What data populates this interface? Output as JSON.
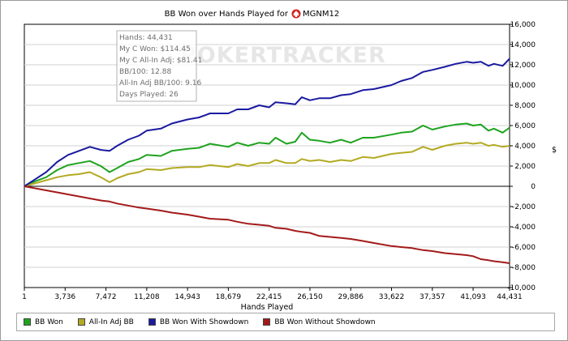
{
  "chart_data": {
    "type": "line",
    "title": "BB Won over Hands Played for",
    "player": "MGNM12",
    "xlabel": "Hands Played",
    "ylabel": "$",
    "xlim": [
      1,
      44431
    ],
    "ylim": [
      -10000,
      16000
    ],
    "x_ticks": [
      "1",
      "3,736",
      "7,472",
      "11,208",
      "14,943",
      "18,679",
      "22,415",
      "26,150",
      "29,886",
      "33,622",
      "37,357",
      "41,093",
      "44,431"
    ],
    "x_tick_values": [
      1,
      3736,
      7472,
      11208,
      14943,
      18679,
      22415,
      26150,
      29886,
      33622,
      37357,
      41093,
      44431
    ],
    "y_ticks": [
      "16,000",
      "14,000",
      "12,000",
      "10,000",
      "8,000",
      "6,000",
      "4,000",
      "2,000",
      "0",
      "-2,000",
      "-4,000",
      "-6,000",
      "-8,000",
      "-10,000"
    ],
    "y_tick_values": [
      16000,
      14000,
      12000,
      10000,
      8000,
      6000,
      4000,
      2000,
      0,
      -2000,
      -4000,
      -6000,
      -8000,
      -10000
    ],
    "x": [
      1,
      1000,
      2000,
      3000,
      4000,
      5000,
      6000,
      7000,
      7800,
      8500,
      9500,
      10500,
      11208,
      12500,
      13500,
      14943,
      16000,
      17000,
      18679,
      19500,
      20500,
      21500,
      22415,
      23000,
      24000,
      24800,
      25400,
      26150,
      27000,
      28000,
      29000,
      29886,
      31000,
      32000,
      33622,
      34500,
      35500,
      36500,
      37357,
      38500,
      39500,
      40500,
      41093,
      41800,
      42500,
      43000,
      43800,
      44431
    ],
    "series": [
      {
        "name": "BB Won",
        "color": "#1fa31f",
        "values": [
          0,
          500,
          900,
          1600,
          2100,
          2300,
          2500,
          2000,
          1400,
          1800,
          2400,
          2700,
          3100,
          3000,
          3500,
          3700,
          3800,
          4200,
          3900,
          4300,
          4000,
          4300,
          4200,
          4800,
          4200,
          4400,
          5300,
          4600,
          4500,
          4300,
          4600,
          4300,
          4800,
          4800,
          5100,
          5300,
          5400,
          6000,
          5600,
          5900,
          6100,
          6200,
          6000,
          6100,
          5500,
          5700,
          5300,
          5800
        ]
      },
      {
        "name": "All-In Adj BB",
        "color": "#b3aa22",
        "values": [
          0,
          300,
          600,
          900,
          1100,
          1200,
          1400,
          900,
          400,
          800,
          1200,
          1400,
          1700,
          1600,
          1800,
          1900,
          1900,
          2100,
          1900,
          2200,
          2000,
          2300,
          2300,
          2600,
          2300,
          2300,
          2700,
          2500,
          2600,
          2400,
          2600,
          2500,
          2900,
          2800,
          3200,
          3300,
          3400,
          3900,
          3600,
          4000,
          4200,
          4300,
          4200,
          4300,
          4000,
          4100,
          3900,
          4000
        ]
      },
      {
        "name": "BB Won With Showdown",
        "color": "#1a1aa0",
        "values": [
          0,
          700,
          1400,
          2400,
          3100,
          3500,
          3900,
          3600,
          3500,
          4000,
          4600,
          5000,
          5500,
          5700,
          6200,
          6600,
          6800,
          7200,
          7200,
          7600,
          7600,
          8000,
          7800,
          8300,
          8200,
          8100,
          8800,
          8500,
          8700,
          8700,
          9000,
          9100,
          9500,
          9600,
          10000,
          10400,
          10700,
          11300,
          11500,
          11800,
          12100,
          12300,
          12200,
          12300,
          11900,
          12100,
          11900,
          12600
        ]
      },
      {
        "name": "BB Won Without Showdown",
        "color": "#a31a1a",
        "values": [
          0,
          -200,
          -400,
          -600,
          -800,
          -1000,
          -1200,
          -1400,
          -1500,
          -1700,
          -1900,
          -2100,
          -2200,
          -2400,
          -2600,
          -2800,
          -3000,
          -3200,
          -3300,
          -3500,
          -3700,
          -3800,
          -3900,
          -4100,
          -4200,
          -4400,
          -4500,
          -4600,
          -4900,
          -5000,
          -5100,
          -5200,
          -5400,
          -5600,
          -5900,
          -6000,
          -6100,
          -6300,
          -6400,
          -6600,
          -6700,
          -6800,
          -6900,
          -7200,
          -7300,
          -7400,
          -7500,
          -7600
        ]
      }
    ],
    "watermark": "POKERTRACKER",
    "tooltip_lines": [
      "Hands: 44,431",
      "My C Won: $114.45",
      "My C All-In Adj: $81.41",
      "BB/100: 12.88",
      "All-In Adj BB/100: 9.16",
      "Days Played: 26"
    ],
    "legend_position": "bottom"
  }
}
